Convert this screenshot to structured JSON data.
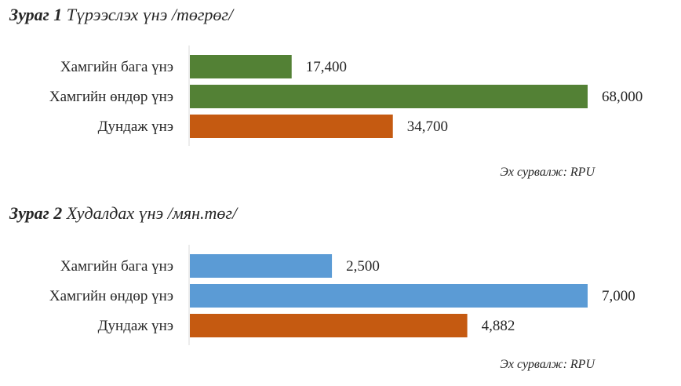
{
  "chart_data": [
    {
      "type": "bar",
      "orientation": "horizontal",
      "figure_label": "Зураг 1",
      "title": "Түрээслэх үнэ /төгрөг/",
      "categories": [
        "Хамгийн бага үнэ",
        "Хамгийн өндөр үнэ",
        "Дундаж үнэ"
      ],
      "values": [
        17400,
        68000,
        34700
      ],
      "value_labels": [
        "17,400",
        "68,000",
        "34,700"
      ],
      "colors": [
        "#538135",
        "#538135",
        "#C55A11"
      ],
      "xlim": [
        0,
        68000
      ],
      "grid": false,
      "legend": "none",
      "source": "Эх сурвалж: RPU"
    },
    {
      "type": "bar",
      "orientation": "horizontal",
      "figure_label": "Зураг 2",
      "title": "Худалдах үнэ /мян.төг/",
      "categories": [
        "Хамгийн бага үнэ",
        "Хамгийн өндөр үнэ",
        "Дундаж үнэ"
      ],
      "values": [
        2500,
        7000,
        4882
      ],
      "value_labels": [
        "2,500",
        "7,000",
        "4,882"
      ],
      "colors": [
        "#5B9BD5",
        "#5B9BD5",
        "#C55A11"
      ],
      "xlim": [
        0,
        7000
      ],
      "grid": false,
      "legend": "none",
      "source": "Эх сурвалж: RPU"
    }
  ]
}
